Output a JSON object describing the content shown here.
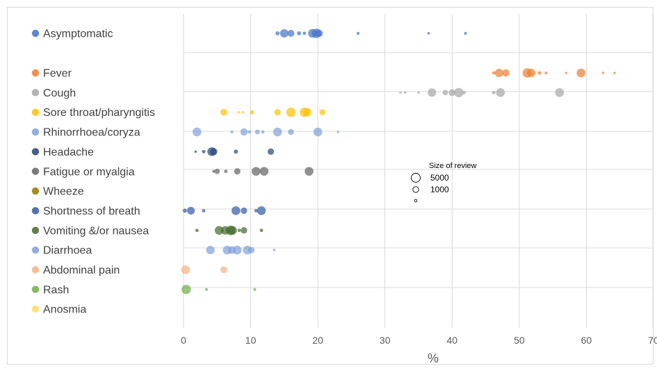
{
  "chart_data": {
    "type": "scatter",
    "title": "",
    "xlabel": "%",
    "ylabel": "",
    "xlim": [
      0,
      70
    ],
    "xticks": [
      "0",
      "10",
      "20",
      "30",
      "40",
      "50",
      "60",
      "70"
    ],
    "grid": true,
    "legend_position": "left",
    "size_legend": {
      "title": "Size of review",
      "entries": [
        {
          "label": "5000",
          "value": 5000
        },
        {
          "label": "1000",
          "value": 1000
        },
        {
          "label": "",
          "value": 100
        }
      ]
    },
    "series": [
      {
        "name": "Asymptomatic",
        "color": "#4472c4",
        "points": [
          {
            "x": 14,
            "size": 300
          },
          {
            "x": 15,
            "size": 1200
          },
          {
            "x": 16,
            "size": 800
          },
          {
            "x": 17.2,
            "size": 300
          },
          {
            "x": 18,
            "size": 200
          },
          {
            "x": 19.2,
            "size": 1300
          },
          {
            "x": 19.8,
            "size": 1500
          },
          {
            "x": 20.2,
            "size": 900
          },
          {
            "x": 26,
            "size": 150
          },
          {
            "x": 36.5,
            "size": 120
          },
          {
            "x": 42,
            "size": 150
          }
        ]
      },
      {
        "name": "Fever",
        "color": "#ed7d31",
        "points": [
          {
            "x": 46.2,
            "size": 200
          },
          {
            "x": 47,
            "size": 1200
          },
          {
            "x": 48,
            "size": 900
          },
          {
            "x": 51.2,
            "size": 1500
          },
          {
            "x": 51.8,
            "size": 1200
          },
          {
            "x": 53,
            "size": 200
          },
          {
            "x": 54,
            "size": 150
          },
          {
            "x": 57,
            "size": 100
          },
          {
            "x": 59.2,
            "size": 1300
          },
          {
            "x": 62.5,
            "size": 100
          },
          {
            "x": 64.2,
            "size": 100
          }
        ]
      },
      {
        "name": "Cough",
        "color": "#a5a5a5",
        "points": [
          {
            "x": 32.3,
            "size": 80
          },
          {
            "x": 33,
            "size": 100
          },
          {
            "x": 35,
            "size": 100
          },
          {
            "x": 37,
            "size": 1200
          },
          {
            "x": 39,
            "size": 500
          },
          {
            "x": 40,
            "size": 800
          },
          {
            "x": 41,
            "size": 1500
          },
          {
            "x": 41.8,
            "size": 200
          },
          {
            "x": 46.2,
            "size": 200
          },
          {
            "x": 47.2,
            "size": 1300
          },
          {
            "x": 56,
            "size": 1300
          }
        ]
      },
      {
        "name": "Sore throat/pharyngitis",
        "color": "#ffc000",
        "points": [
          {
            "x": 6,
            "size": 800
          },
          {
            "x": 8.2,
            "size": 100
          },
          {
            "x": 8.8,
            "size": 100
          },
          {
            "x": 10.2,
            "size": 300
          },
          {
            "x": 14,
            "size": 700
          },
          {
            "x": 16,
            "size": 1500
          },
          {
            "x": 18,
            "size": 1500
          },
          {
            "x": 18.4,
            "size": 1200
          },
          {
            "x": 20.7,
            "size": 600
          }
        ]
      },
      {
        "name": "Rhinorrhoea/coryza",
        "color": "#7f9fd9",
        "points": [
          {
            "x": 2,
            "size": 1300
          },
          {
            "x": 7.2,
            "size": 150
          },
          {
            "x": 9,
            "size": 900
          },
          {
            "x": 9.8,
            "size": 200
          },
          {
            "x": 11,
            "size": 400
          },
          {
            "x": 11.8,
            "size": 200
          },
          {
            "x": 14,
            "size": 1300
          },
          {
            "x": 16,
            "size": 600
          },
          {
            "x": 20,
            "size": 1300
          },
          {
            "x": 23,
            "size": 100
          }
        ]
      },
      {
        "name": "Headache",
        "color": "#264478",
        "points": [
          {
            "x": 1.8,
            "size": 100
          },
          {
            "x": 3,
            "size": 200
          },
          {
            "x": 4.2,
            "size": 1300
          },
          {
            "x": 4.5,
            "size": 900
          },
          {
            "x": 7.8,
            "size": 300
          },
          {
            "x": 13,
            "size": 700
          }
        ]
      },
      {
        "name": "Fatigue or myalgia",
        "color": "#636363",
        "points": [
          {
            "x": 4.5,
            "size": 150
          },
          {
            "x": 5,
            "size": 500
          },
          {
            "x": 6.3,
            "size": 200
          },
          {
            "x": 8,
            "size": 700
          },
          {
            "x": 10.8,
            "size": 1300
          },
          {
            "x": 12,
            "size": 1300
          },
          {
            "x": 18.7,
            "size": 1300
          }
        ]
      },
      {
        "name": "Wheeze",
        "color": "#997300",
        "points": []
      },
      {
        "name": "Shortness of breath",
        "color": "#335aa1",
        "points": [
          {
            "x": 0.2,
            "size": 300
          },
          {
            "x": 1.1,
            "size": 1000
          },
          {
            "x": 3,
            "size": 200
          },
          {
            "x": 7.8,
            "size": 1300
          },
          {
            "x": 9,
            "size": 700
          },
          {
            "x": 10.8,
            "size": 200
          },
          {
            "x": 11.6,
            "size": 1300
          }
        ]
      },
      {
        "name": "Vomiting &/or nausea",
        "color": "#43682b",
        "points": [
          {
            "x": 2,
            "size": 200
          },
          {
            "x": 5.3,
            "size": 1300
          },
          {
            "x": 6.2,
            "size": 1200
          },
          {
            "x": 7,
            "size": 1500
          },
          {
            "x": 7.3,
            "size": 1300
          },
          {
            "x": 8.3,
            "size": 200
          },
          {
            "x": 9,
            "size": 700
          },
          {
            "x": 11.6,
            "size": 200
          }
        ]
      },
      {
        "name": "Diarrhoea",
        "color": "#7f9fd9",
        "points": [
          {
            "x": 4,
            "size": 1200
          },
          {
            "x": 6.5,
            "size": 1300
          },
          {
            "x": 7.2,
            "size": 1000
          },
          {
            "x": 8,
            "size": 1300
          },
          {
            "x": 9.5,
            "size": 1300
          },
          {
            "x": 10.1,
            "size": 700
          },
          {
            "x": 13.5,
            "size": 100
          }
        ]
      },
      {
        "name": "Abdominal pain",
        "color": "#f4b183",
        "points": [
          {
            "x": 0.3,
            "size": 1300
          },
          {
            "x": 6,
            "size": 800
          }
        ]
      },
      {
        "name": "Rash",
        "color": "#70ad47",
        "points": [
          {
            "x": 0.4,
            "size": 1500
          },
          {
            "x": 3.4,
            "size": 150
          },
          {
            "x": 10.6,
            "size": 150
          }
        ]
      },
      {
        "name": "Anosmia",
        "color": "#ffd966",
        "points": []
      }
    ]
  }
}
